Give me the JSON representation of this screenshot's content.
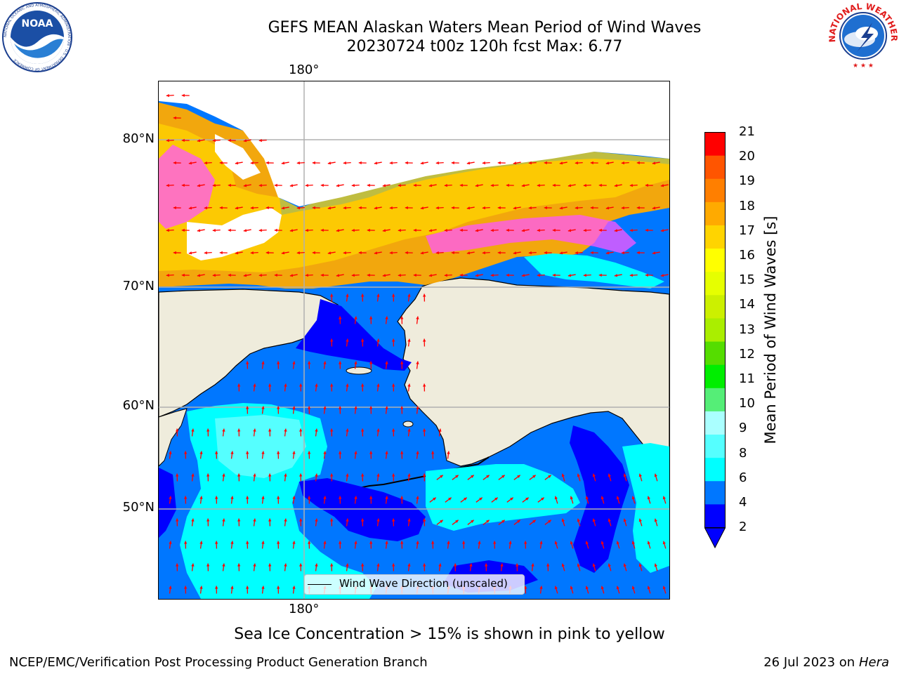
{
  "header": {
    "title_line1": "GEFS MEAN Alaskan Waters Mean Period of Wind Waves",
    "title_line2": "20230724 t00z 120h fcst   Max: 6.77"
  },
  "logos": {
    "left": "NOAA",
    "left_ring": "NATIONAL OCEANIC AND ATMOSPHERIC ADMINISTRATION · U.S. DEPARTMENT OF COMMERCE",
    "right_ring": "NATIONAL WEATHER SERVICE"
  },
  "map": {
    "lon_label_top": "180°",
    "lon_label_bottom": "180°",
    "lat_labels": [
      "80°N",
      "70°N",
      "60°N",
      "50°N"
    ],
    "legend_label": "Wind Wave Direction (unscaled)",
    "arrow_color": "#ff0000",
    "land_color": "#efecdc",
    "ice_color": "#ffffff"
  },
  "colorbar": {
    "title": "Mean Period of Wind Waves [s]",
    "ticks": [
      "21",
      "20",
      "19",
      "18",
      "17",
      "16",
      "15",
      "14",
      "13",
      "12",
      "11",
      "10",
      "9",
      "8",
      "6",
      "4",
      "2"
    ],
    "colors": [
      "#ff0000",
      "#ff2200",
      "#ff5500",
      "#ff7f00",
      "#ffaa00",
      "#ffd400",
      "#ffff00",
      "#e6ff00",
      "#ccf000",
      "#aaee00",
      "#55dd00",
      "#00ee00",
      "#55ee77",
      "#aaffff",
      "#55ffff",
      "#00ffff",
      "#0077ff",
      "#0000ff"
    ]
  },
  "caption": "Sea Ice Concentration > 15% is shown in pink to yellow",
  "footer": {
    "left": "NCEP/EMC/Verification Post Processing Product Generation Branch",
    "date": "26 Jul 2023 on ",
    "host": "Hera"
  }
}
